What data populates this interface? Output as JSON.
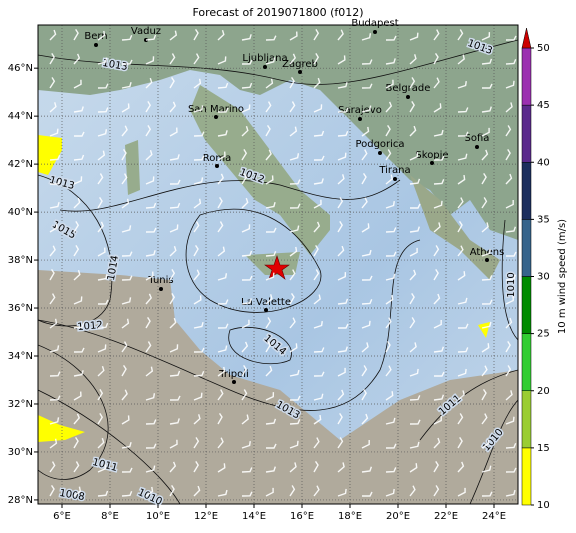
{
  "map": {
    "title": "Forecast of 2019071800 (f012)",
    "xlim": [
      5,
      25
    ],
    "ylim": [
      27.83,
      47.8
    ],
    "xticks": [
      {
        "value": 6,
        "label": "6°E"
      },
      {
        "value": 8,
        "label": "8°E"
      },
      {
        "value": 10,
        "label": "10°E"
      },
      {
        "value": 12,
        "label": "12°E"
      },
      {
        "value": 14,
        "label": "14°E"
      },
      {
        "value": 16,
        "label": "16°E"
      },
      {
        "value": 18,
        "label": "18°E"
      },
      {
        "value": 20,
        "label": "20°E"
      },
      {
        "value": 22,
        "label": "22°E"
      },
      {
        "value": 24,
        "label": "24°E"
      }
    ],
    "yticks": [
      {
        "value": 28,
        "label": "28°N"
      },
      {
        "value": 30,
        "label": "30°N"
      },
      {
        "value": 32,
        "label": "32°N"
      },
      {
        "value": 34,
        "label": "34°N"
      },
      {
        "value": 36,
        "label": "36°N"
      },
      {
        "value": 38,
        "label": "38°N"
      },
      {
        "value": 40,
        "label": "40°N"
      },
      {
        "value": 42,
        "label": "42°N"
      },
      {
        "value": 44,
        "label": "44°N"
      },
      {
        "value": 46,
        "label": "46°N"
      }
    ],
    "grid": true,
    "cities": [
      "Bern",
      "Vaduz",
      "Budapest",
      "Ljubljana",
      "Zagreb",
      "San Marino",
      "Belgrade",
      "Sarajevo",
      "Roma",
      "Podgorica",
      "Skopje",
      "Sofia",
      "Tirana",
      "Tunis",
      "Athens",
      "La Valette",
      "Tripoli"
    ],
    "isobar_labels": [
      "1013",
      "1013",
      "1013",
      "1015",
      "1014",
      "1012",
      "1012",
      "1014",
      "1013",
      "1011",
      "1008",
      "1010",
      "1011",
      "1010",
      "1010"
    ],
    "colorbar": {
      "label": "10 m wind speed (m/s)",
      "lim": [
        10,
        50
      ],
      "ticks": [
        10,
        15,
        20,
        25,
        30,
        35,
        40,
        45,
        50
      ],
      "colors": [
        "#ffff00",
        "#9acd32",
        "#32cd32",
        "#008b00",
        "#36648b",
        "#1c2f5e",
        "#5a2a8c",
        "#9b30b0"
      ],
      "extend_color": "#cc0000"
    }
  }
}
